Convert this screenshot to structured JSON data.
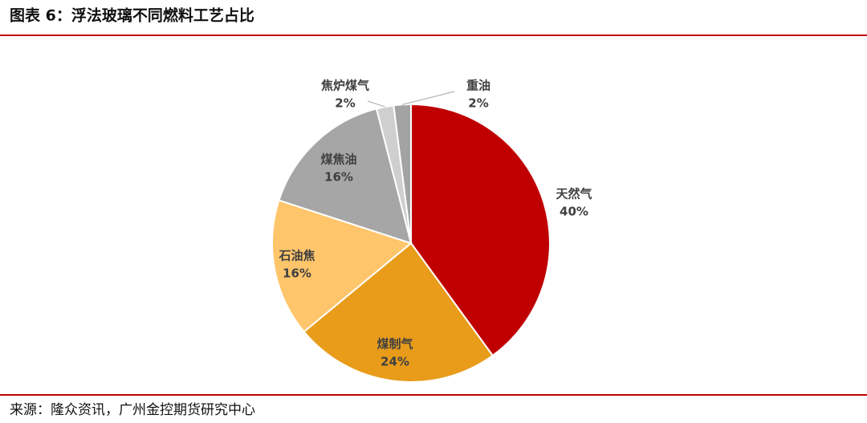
{
  "chart_data": {
    "type": "pie",
    "title": "图表 6：浮法玻璃不同燃料工艺占比",
    "source": "来源：隆众资讯，广州金控期货研究中心",
    "categories": [
      "天然气",
      "煤制气",
      "石油焦",
      "煤焦油",
      "焦炉煤气",
      "重油"
    ],
    "values": [
      40,
      24,
      16,
      16,
      2,
      2
    ],
    "value_labels": [
      "40%",
      "24%",
      "16%",
      "16%",
      "2%",
      "2%"
    ],
    "colors": [
      "#c00000",
      "#e89c1a",
      "#ffc56b",
      "#a6a6a6",
      "#cfcfcf",
      "#a3a3a3"
    ]
  }
}
